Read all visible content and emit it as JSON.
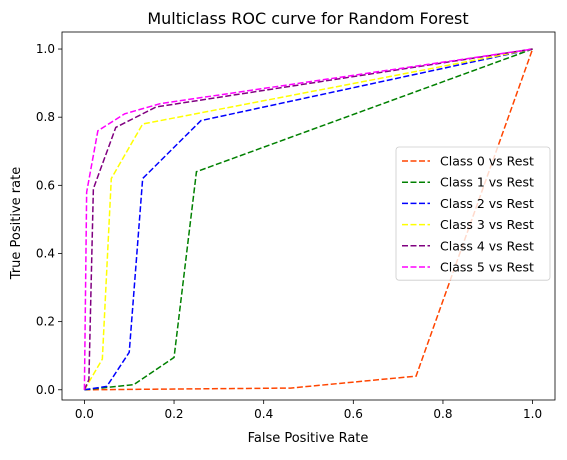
{
  "chart_data": {
    "type": "line",
    "title": "Multiclass ROC curve for Random Forest",
    "xlabel": "False Positive Rate",
    "ylabel": "True Positive rate",
    "xlim": [
      -0.05,
      1.05
    ],
    "ylim": [
      -0.03,
      1.05
    ],
    "xticks": [
      0.0,
      0.2,
      0.4,
      0.6,
      0.8,
      1.0
    ],
    "yticks": [
      0.0,
      0.2,
      0.4,
      0.6,
      0.8,
      1.0
    ],
    "xtick_labels": [
      "0.0",
      "0.2",
      "0.4",
      "0.6",
      "0.8",
      "1.0"
    ],
    "ytick_labels": [
      "0.0",
      "0.2",
      "0.4",
      "0.6",
      "0.8",
      "1.0"
    ],
    "grid": false,
    "legend_position": "center-right",
    "line_style": "dashed",
    "series": [
      {
        "name": "Class 0 vs Rest",
        "color": "#ff4500",
        "x": [
          0.0,
          0.46,
          0.74,
          1.0
        ],
        "y": [
          0.0,
          0.005,
          0.04,
          1.0
        ]
      },
      {
        "name": "Class 1 vs Rest",
        "color": "#008000",
        "x": [
          0.0,
          0.11,
          0.2,
          0.25,
          1.0
        ],
        "y": [
          0.0,
          0.015,
          0.095,
          0.64,
          1.0
        ]
      },
      {
        "name": "Class 2 vs Rest",
        "color": "#0000ff",
        "x": [
          0.0,
          0.05,
          0.1,
          0.13,
          0.26,
          1.0
        ],
        "y": [
          0.0,
          0.01,
          0.11,
          0.62,
          0.79,
          1.0
        ]
      },
      {
        "name": "Class 3 vs Rest",
        "color": "#ffff00",
        "x": [
          0.0,
          0.04,
          0.06,
          0.13,
          1.0
        ],
        "y": [
          0.0,
          0.09,
          0.62,
          0.78,
          1.0
        ]
      },
      {
        "name": "Class 4 vs Rest",
        "color": "#800080",
        "x": [
          0.0,
          0.01,
          0.02,
          0.07,
          0.16,
          1.0
        ],
        "y": [
          0.0,
          0.03,
          0.59,
          0.77,
          0.83,
          1.0
        ]
      },
      {
        "name": "Class 5 vs Rest",
        "color": "#ff00ff",
        "x": [
          0.0,
          0.005,
          0.03,
          0.09,
          0.17,
          1.0
        ],
        "y": [
          0.0,
          0.58,
          0.76,
          0.81,
          0.84,
          1.0
        ]
      }
    ]
  }
}
